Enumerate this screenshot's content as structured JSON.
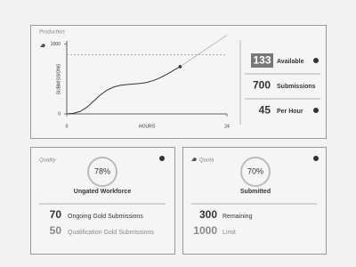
{
  "production": {
    "title": "Production",
    "chart": {
      "type": "line",
      "y_label": "SUBMISSIONS",
      "x_label": "HOURS",
      "x": [
        0,
        1,
        2,
        3,
        4,
        5,
        6,
        7,
        8,
        9,
        10,
        11,
        12,
        13,
        14,
        15,
        16,
        17,
        24
      ],
      "series": [
        {
          "color": "#333333",
          "values": [
            0,
            8,
            35,
            95,
            180,
            270,
            340,
            385,
            410,
            422,
            430,
            438,
            452,
            480,
            520,
            570,
            625,
            680,
            null
          ]
        },
        {
          "color": "#aaaaaa",
          "values": [
            null,
            null,
            null,
            null,
            null,
            null,
            null,
            null,
            null,
            null,
            null,
            null,
            null,
            null,
            null,
            null,
            null,
            680,
            1130
          ]
        }
      ],
      "target": 850,
      "xlim": [
        0,
        24
      ],
      "xticks": [
        0,
        24
      ],
      "ylim": [
        0,
        1150
      ],
      "yticks": [
        0,
        1000
      ]
    },
    "stats": [
      {
        "value": "133",
        "label": "Available"
      },
      {
        "value": "700",
        "label": "Submissions"
      },
      {
        "value": "45",
        "label": "Per Hour"
      }
    ]
  },
  "quality": {
    "title": "Quality",
    "percent": "78%",
    "caption": "Ungated Workforce",
    "rows": [
      {
        "value": "70",
        "label": "Ongoing Gold Submissions"
      },
      {
        "value": "50",
        "label": "Qualification Gold Submissions"
      }
    ]
  },
  "quota": {
    "title": "Quota",
    "percent": "70%",
    "caption": "Submitted",
    "rows": [
      {
        "value": "300",
        "label": "Remaining"
      },
      {
        "value": "1000",
        "label": "Limit"
      }
    ]
  }
}
